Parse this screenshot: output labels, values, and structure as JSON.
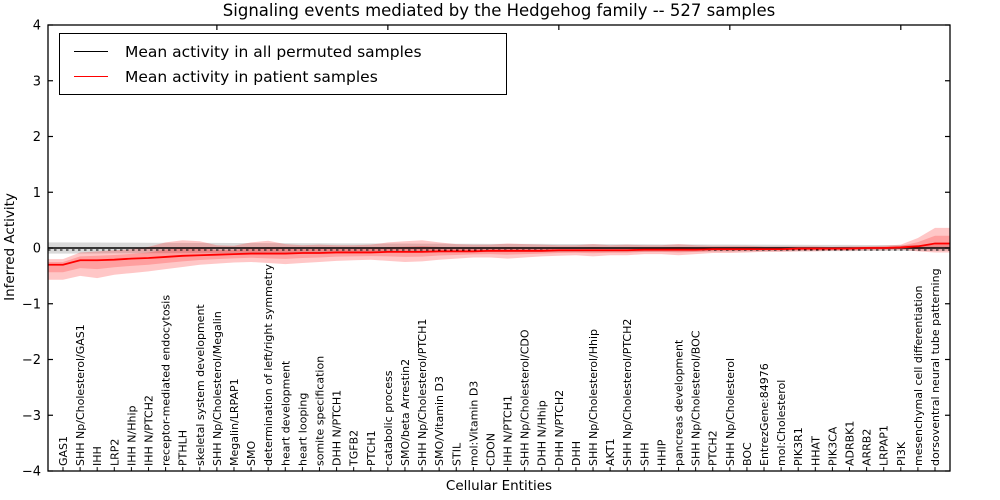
{
  "title": "Signaling events mediated by the Hedgehog family -- 527 samples",
  "axes": {
    "ylabel": "Inferred Activity",
    "xlabel": "Cellular Entities",
    "yticks": [
      "4",
      "3",
      "2",
      "1",
      "0",
      "−1",
      "−2",
      "−3",
      "−4"
    ],
    "ytick_values": [
      4,
      3,
      2,
      1,
      0,
      -1,
      -2,
      -3,
      -4
    ],
    "ylim": [
      -4,
      4
    ]
  },
  "legend": {
    "items": [
      {
        "label": "Mean activity in all permuted samples",
        "color": "#000000"
      },
      {
        "label": "Mean activity in patient samples",
        "color": "#ff0000"
      }
    ]
  },
  "colors": {
    "patient_line": "#ff0000",
    "permuted_line": "#000000",
    "patient_band": "rgba(255,0,0,0.22)",
    "patient_band_inner": "rgba(255,0,0,0.20)",
    "permuted_band": "rgba(0,0,0,0.15)",
    "frame": "#000000"
  },
  "chart_data": {
    "type": "line",
    "title": "Signaling events mediated by the Hedgehog family -- 527 samples",
    "xlabel": "Cellular Entities",
    "ylabel": "Inferred Activity",
    "ylim": [
      -4,
      4
    ],
    "grid": false,
    "legend_position": "upper left",
    "categories": [
      "GAS1",
      "SHH Np/Cholesterol/GAS1",
      "IHH",
      "LRP2",
      "IHH N/Hhip",
      "IHH N/PTCH2",
      "receptor-mediated endocytosis",
      "PTHLH",
      "skeletal system development",
      "SHH Np/Cholesterol/Megalin",
      "Megalin/LRPAP1",
      "SMO",
      "determination of left/right symmetry",
      "heart development",
      "heart looping",
      "somite specification",
      "DHH N/PTCH1",
      "TGFB2",
      "PTCH1",
      "catabolic process",
      "SMO/beta Arrestin2",
      "SHH Np/Cholesterol/PTCH1",
      "SMO/Vitamin D3",
      "STIL",
      "mol:Vitamin D3",
      "CDON",
      "IHH N/PTCH1",
      "SHH Np/Cholesterol/CDO",
      "DHH N/Hhip",
      "DHH N/PTCH2",
      "DHH",
      "SHH Np/Cholesterol/Hhip",
      "AKT1",
      "SHH Np/Cholesterol/PTCH2",
      "SHH",
      "HHIP",
      "pancreas development",
      "SHH Np/Cholesterol/BOC",
      "PTCH2",
      "SHH Np/Cholesterol",
      "BOC",
      "EntrezGene:84976",
      "mol:Cholesterol",
      "PIK3R1",
      "HHAT",
      "PIK3CA",
      "ADRBK1",
      "ARRB2",
      "LRPAP1",
      "PI3K",
      "mesenchymal cell differentiation",
      "dorsoventral neural tube patterning"
    ],
    "series": [
      {
        "name": "Mean activity in all permuted samples",
        "color": "#000000",
        "style": "solid-with-dashed-overlay",
        "values": [
          0,
          0,
          0,
          0,
          0,
          0,
          0,
          0,
          0,
          0,
          0,
          0,
          0,
          0,
          0,
          0,
          0,
          0,
          0,
          0,
          0,
          0,
          0,
          0,
          0,
          0,
          0,
          0,
          0,
          0,
          0,
          0,
          0,
          0,
          0,
          0,
          0,
          0,
          0,
          0,
          0,
          0,
          0,
          0,
          0,
          0,
          0,
          0,
          0,
          0,
          0,
          0
        ]
      },
      {
        "name": "Mean activity in patient samples",
        "color": "#ff0000",
        "style": "solid",
        "values": [
          -0.3,
          -0.22,
          -0.22,
          -0.21,
          -0.19,
          -0.18,
          -0.16,
          -0.14,
          -0.13,
          -0.12,
          -0.11,
          -0.1,
          -0.1,
          -0.1,
          -0.09,
          -0.09,
          -0.08,
          -0.08,
          -0.08,
          -0.07,
          -0.07,
          -0.07,
          -0.06,
          -0.06,
          -0.06,
          -0.05,
          -0.05,
          -0.05,
          -0.05,
          -0.04,
          -0.04,
          -0.04,
          -0.04,
          -0.04,
          -0.03,
          -0.03,
          -0.03,
          -0.03,
          -0.02,
          -0.02,
          -0.02,
          -0.02,
          -0.02,
          -0.01,
          -0.01,
          -0.01,
          -0.01,
          0.0,
          0.0,
          0.01,
          0.03,
          0.08
        ]
      }
    ],
    "bands": [
      {
        "name": "patient-samples-std",
        "color": "rgba(255,0,0,0.22)",
        "upper": [
          -0.2,
          -0.08,
          -0.06,
          -0.04,
          -0.02,
          0.02,
          0.1,
          0.14,
          0.12,
          0.05,
          0.04,
          0.1,
          0.13,
          0.07,
          0.05,
          0.06,
          0.05,
          0.05,
          0.06,
          0.1,
          0.12,
          0.14,
          0.1,
          0.07,
          0.06,
          0.06,
          0.08,
          0.07,
          0.06,
          0.05,
          0.05,
          0.07,
          0.05,
          0.06,
          0.05,
          0.05,
          0.07,
          0.05,
          0.04,
          0.04,
          0.04,
          0.03,
          0.03,
          0.03,
          0.03,
          0.02,
          0.03,
          0.03,
          0.04,
          0.06,
          0.18,
          0.36
        ],
        "lower": [
          -0.57,
          -0.5,
          -0.54,
          -0.48,
          -0.45,
          -0.42,
          -0.38,
          -0.34,
          -0.3,
          -0.28,
          -0.26,
          -0.25,
          -0.27,
          -0.29,
          -0.27,
          -0.25,
          -0.23,
          -0.22,
          -0.21,
          -0.23,
          -0.25,
          -0.24,
          -0.21,
          -0.19,
          -0.17,
          -0.17,
          -0.19,
          -0.17,
          -0.15,
          -0.14,
          -0.13,
          -0.15,
          -0.13,
          -0.13,
          -0.11,
          -0.11,
          -0.13,
          -0.11,
          -0.09,
          -0.09,
          -0.08,
          -0.07,
          -0.07,
          -0.06,
          -0.06,
          -0.05,
          -0.05,
          -0.04,
          -0.04,
          -0.03,
          -0.06,
          -0.08
        ]
      },
      {
        "name": "permuted-samples-std",
        "color": "rgba(0,0,0,0.15)",
        "symmetric": true,
        "upper": [
          0.1,
          0.099,
          0.098,
          0.097,
          0.096,
          0.095,
          0.094,
          0.093,
          0.092,
          0.091,
          0.09,
          0.089,
          0.088,
          0.087,
          0.086,
          0.085,
          0.084,
          0.083,
          0.082,
          0.081,
          0.08,
          0.079,
          0.078,
          0.077,
          0.076,
          0.075,
          0.075,
          0.074,
          0.073,
          0.072,
          0.071,
          0.07,
          0.069,
          0.068,
          0.067,
          0.066,
          0.065,
          0.064,
          0.063,
          0.062,
          0.061,
          0.06,
          0.059,
          0.058,
          0.057,
          0.056,
          0.055,
          0.054,
          0.053,
          0.052,
          0.051,
          0.05
        ]
      }
    ],
    "top_tick_indices": [
      9,
      19,
      29,
      39,
      49
    ]
  }
}
